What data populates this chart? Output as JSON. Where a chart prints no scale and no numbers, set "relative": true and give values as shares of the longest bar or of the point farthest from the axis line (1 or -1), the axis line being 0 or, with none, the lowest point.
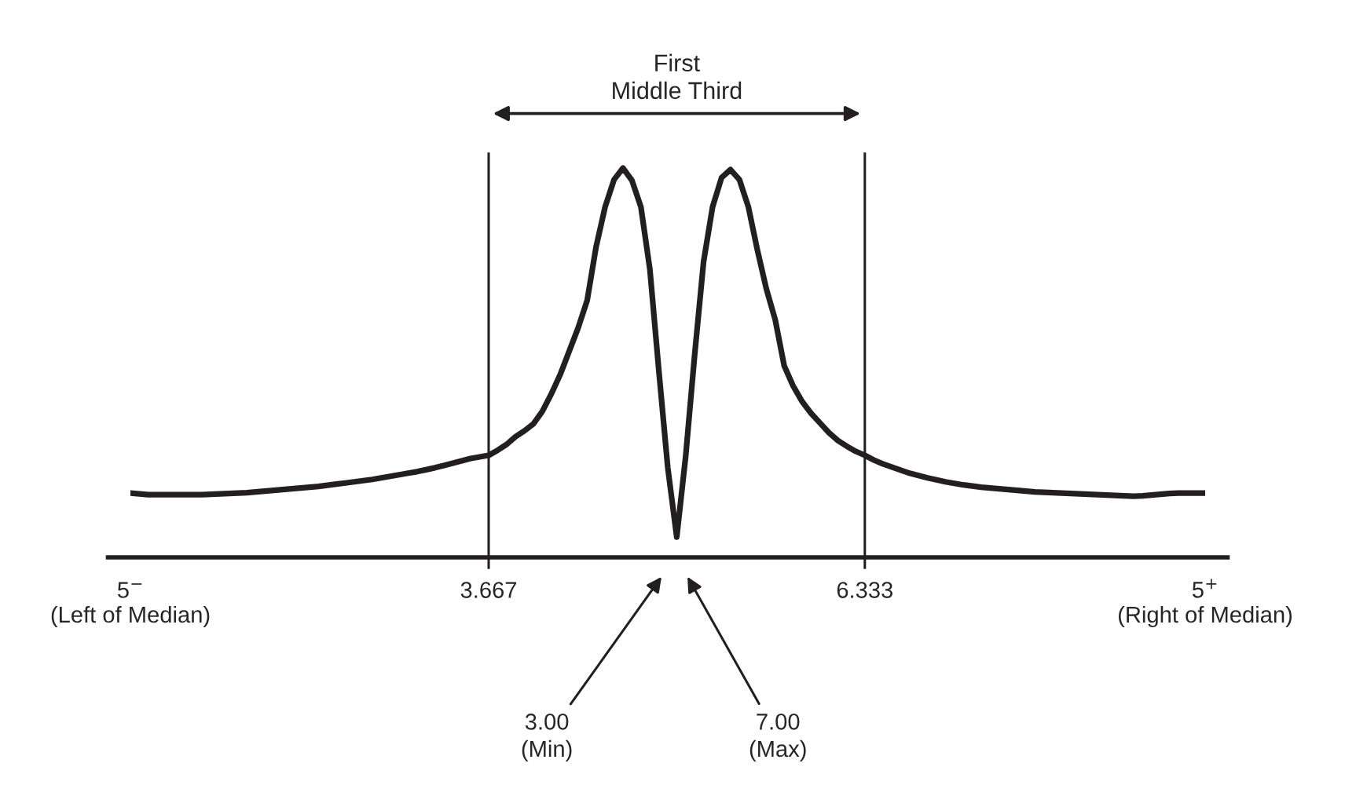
{
  "chart_data": {
    "type": "line",
    "relative": true,
    "categories": [
      "5$^{−}$\n(Left of Median)",
      null,
      null,
      null,
      null,
      null,
      null,
      null,
      null,
      null,
      null,
      null,
      null,
      null,
      null,
      null,
      null,
      null,
      null,
      null,
      null,
      null,
      null,
      null,
      null,
      null,
      null,
      null,
      null,
      null,
      null,
      null,
      null,
      null,
      null,
      null,
      null,
      null,
      null,
      null,
      "3.667",
      null,
      null,
      null,
      null,
      null,
      null,
      null,
      null,
      null,
      null,
      null,
      null,
      null,
      null,
      null,
      null,
      null,
      null,
      null,
      null,
      null,
      null,
      null,
      null,
      null,
      null,
      null,
      null,
      null,
      null,
      null,
      null,
      null,
      null,
      null,
      null,
      null,
      null,
      null,
      null,
      null,
      "6.333",
      null,
      null,
      null,
      null,
      null,
      null,
      null,
      null,
      null,
      null,
      null,
      null,
      null,
      null,
      null,
      null,
      null,
      null,
      null,
      null,
      null,
      null,
      null,
      null,
      null,
      null,
      null,
      null,
      null,
      null,
      null,
      null,
      null,
      null,
      null,
      null,
      null,
      "5$^{+}$\n(Right of Median)"
    ],
    "series": [
      {
        "color": "#231f20",
        "values": [
          0.165,
          0.163,
          0.161,
          0.161,
          0.161,
          0.161,
          0.161,
          0.161,
          0.161,
          0.162,
          0.163,
          0.164,
          0.165,
          0.166,
          0.168,
          0.17,
          0.172,
          0.174,
          0.176,
          0.178,
          0.18,
          0.182,
          0.185,
          0.188,
          0.191,
          0.194,
          0.197,
          0.2,
          0.204,
          0.208,
          0.212,
          0.216,
          0.22,
          0.225,
          0.23,
          0.236,
          0.242,
          0.248,
          0.254,
          0.258,
          0.262,
          0.275,
          0.29,
          0.31,
          0.325,
          0.343,
          0.375,
          0.42,
          0.47,
          0.53,
          0.59,
          0.66,
          0.798,
          0.9,
          0.97,
          1.0,
          0.968,
          0.9,
          0.74,
          0.48,
          0.23,
          0.052,
          0.26,
          0.52,
          0.76,
          0.9,
          0.975,
          0.996,
          0.97,
          0.9,
          0.79,
          0.69,
          0.61,
          0.492,
          0.44,
          0.4,
          0.37,
          0.345,
          0.32,
          0.3,
          0.285,
          0.272,
          0.262,
          0.25,
          0.24,
          0.232,
          0.224,
          0.216,
          0.21,
          0.204,
          0.199,
          0.194,
          0.19,
          0.186,
          0.183,
          0.18,
          0.178,
          0.176,
          0.174,
          0.172,
          0.17,
          0.168,
          0.167,
          0.166,
          0.165,
          0.164,
          0.163,
          0.162,
          0.161,
          0.16,
          0.159,
          0.158,
          0.157,
          0.158,
          0.16,
          0.162,
          0.164,
          0.165,
          0.165,
          0.165,
          0.165
        ]
      }
    ],
    "ref_lines": [
      {
        "axis": "x",
        "value": "3.667"
      },
      {
        "axis": "x",
        "value": "6.333"
      }
    ],
    "annotations": [
      "First\nMiddle Third",
      "3.00\n(Min)",
      "7.00\n(Max)"
    ]
  }
}
